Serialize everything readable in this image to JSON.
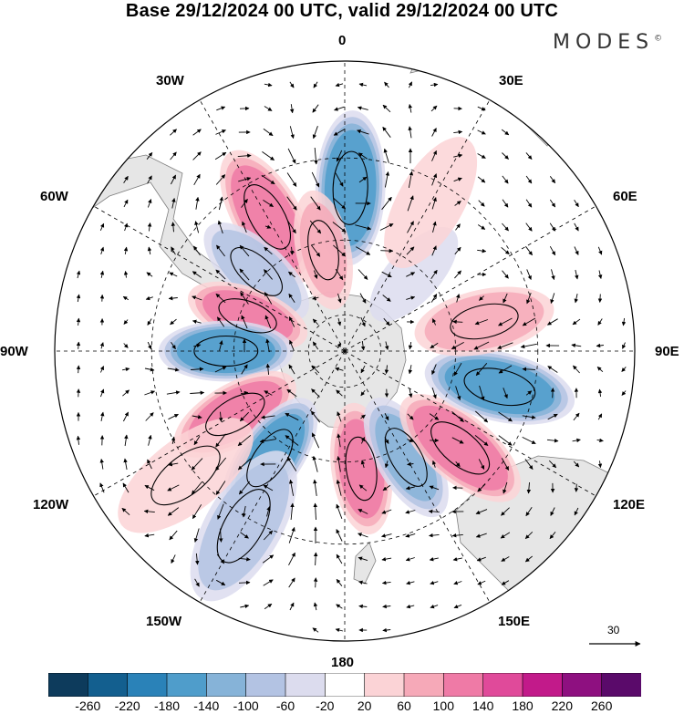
{
  "title": "Base 29/12/2024 00 UTC, valid 29/12/2024 00 UTC",
  "brand": "MODES",
  "brand_mark": "©",
  "projection": "south-polar-stereographic",
  "longitude_labels": {
    "lon_0": "0",
    "lon_30e": "30E",
    "lon_60e": "60E",
    "lon_90e": "90E",
    "lon_120e": "120E",
    "lon_150e": "150E",
    "lon_180": "180",
    "lon_150w": "150W",
    "lon_120w": "120W",
    "lon_90w": "90W",
    "lon_60w": "60W",
    "lon_30w": "30W"
  },
  "reference_vector_label": "30",
  "colorbar": {
    "ticks": [
      "-260",
      "-220",
      "-180",
      "-140",
      "-100",
      "-60",
      "-20",
      "20",
      "60",
      "100",
      "140",
      "180",
      "220",
      "260"
    ],
    "colors": [
      "#0d3b5c",
      "#135f8f",
      "#2a82b8",
      "#4f9dcb",
      "#86b3d8",
      "#b3c3e3",
      "#dcdcee",
      "#ffffff",
      "#fbd3d6",
      "#f6a9b8",
      "#ef7aa6",
      "#e04a9a",
      "#c21a8a",
      "#8e1080",
      "#5a0a6a"
    ]
  },
  "colors": {
    "land": "#e6e6e6",
    "coast": "#7f7f7f",
    "grid": "#000000",
    "negative_center": "#3f8fc4",
    "positive_center": "#ee6ea6"
  },
  "map_data": {
    "anomaly_centers": [
      {
        "lon": 2,
        "lat": -47,
        "sign": "negative",
        "value": -180
      },
      {
        "lon": -30,
        "lat": -49,
        "sign": "positive",
        "value": 130
      },
      {
        "lon": -48,
        "lat": -58,
        "sign": "negative",
        "value": -100
      },
      {
        "lon": -12,
        "lat": -62,
        "sign": "positive",
        "value": 70
      },
      {
        "lon": -70,
        "lat": -62,
        "sign": "positive",
        "value": 120
      },
      {
        "lon": -90,
        "lat": -58,
        "sign": "negative",
        "value": -170
      },
      {
        "lon": -120,
        "lat": -56,
        "sign": "positive",
        "value": 130
      },
      {
        "lon": -145,
        "lat": -55,
        "sign": "negative",
        "value": -170
      },
      {
        "lon": 172,
        "lat": -58,
        "sign": "positive",
        "value": 120
      },
      {
        "lon": 150,
        "lat": -57,
        "sign": "negative",
        "value": -110
      },
      {
        "lon": 130,
        "lat": -50,
        "sign": "positive",
        "value": 140
      },
      {
        "lon": 103,
        "lat": -48,
        "sign": "negative",
        "value": -170
      },
      {
        "lon": 78,
        "lat": -52,
        "sign": "positive",
        "value": 100
      },
      {
        "lon": 42,
        "lat": -62,
        "sign": "negative",
        "value": -50
      },
      {
        "lon": 30,
        "lat": -45,
        "sign": "positive",
        "value": 50
      },
      {
        "lon": -150,
        "lat": -38,
        "sign": "negative",
        "value": -100
      },
      {
        "lon": -128,
        "lat": -38,
        "sign": "positive",
        "value": 60
      }
    ]
  }
}
